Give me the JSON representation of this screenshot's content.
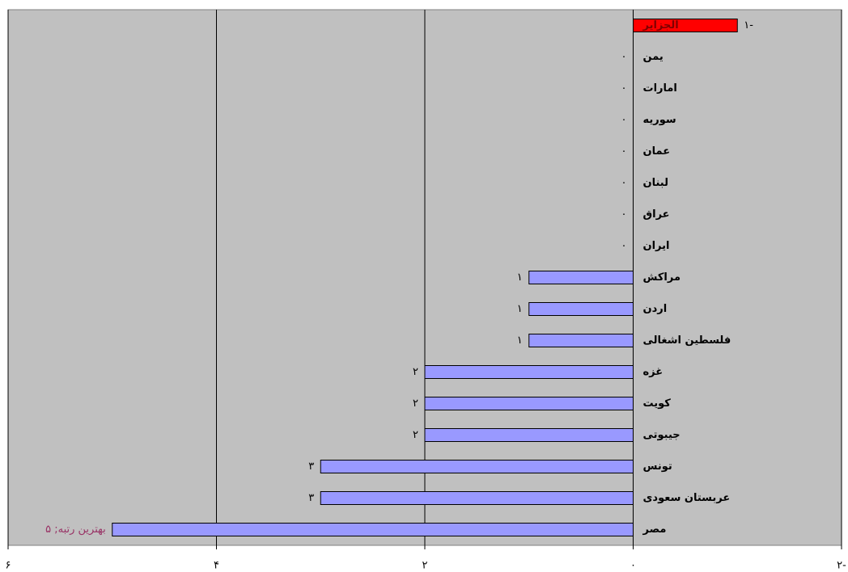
{
  "chart_data": {
    "type": "bar",
    "orientation": "horizontal",
    "x_reversed": true,
    "categories": [
      "الجزایر",
      "یمن",
      "امارات",
      "سوریه",
      "عمان",
      "لبنان",
      "عراق",
      "ایران",
      "مراکش",
      "اردن",
      "فلسطین اشغالی",
      "غزه",
      "کویت",
      "جیبوتی",
      "تونس",
      "عربستان سعودی",
      "مصر"
    ],
    "values": [
      -1,
      0,
      0,
      0,
      0,
      0,
      0,
      0,
      1,
      1,
      1,
      2,
      2,
      2,
      3,
      3,
      5
    ],
    "value_labels": [
      "۱-",
      "۰",
      "۰",
      "۰",
      "۰",
      "۰",
      "۰",
      "۰",
      "۱",
      "۱",
      "۱",
      "۲",
      "۲",
      "۲",
      "۳",
      "۳",
      "بهترین رتبه; ۵"
    ],
    "colors": [
      "#ff0000",
      "#9999ff",
      "#9999ff",
      "#9999ff",
      "#9999ff",
      "#9999ff",
      "#9999ff",
      "#9999ff",
      "#9999ff",
      "#9999ff",
      "#9999ff",
      "#9999ff",
      "#9999ff",
      "#9999ff",
      "#9999ff",
      "#9999ff",
      "#9999ff"
    ],
    "label_colors": [
      "#000000",
      "#000000",
      "#000000",
      "#000000",
      "#000000",
      "#000000",
      "#000000",
      "#000000",
      "#000000",
      "#000000",
      "#000000",
      "#000000",
      "#000000",
      "#000000",
      "#000000",
      "#000000",
      "#993366"
    ],
    "xlim": [
      -2,
      6
    ],
    "xticks": [
      {
        "value": -2,
        "label": "۲-"
      },
      {
        "value": 0,
        "label": "۰"
      },
      {
        "value": 2,
        "label": "۲"
      },
      {
        "value": 4,
        "label": "۴"
      },
      {
        "value": 6,
        "label": "۶"
      }
    ],
    "grid": true,
    "background": "#c0c0c0"
  }
}
